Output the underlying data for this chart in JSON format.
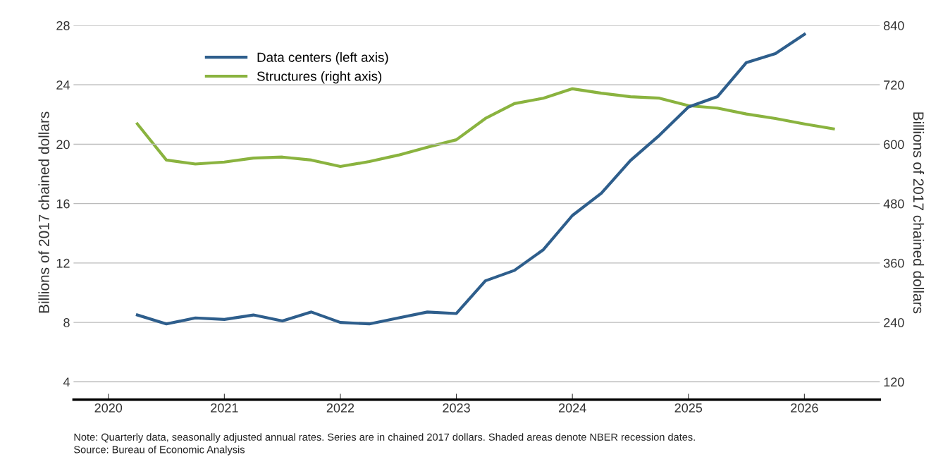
{
  "chart_data": {
    "type": "line",
    "ylabel": "Billions of 2017 chained dollars",
    "y2label": "Billions of 2017 chained dollars",
    "x": [
      2020.25,
      2020.5,
      2020.75,
      2021,
      2021.25,
      2021.5,
      2021.75,
      2022,
      2022.25,
      2022.5,
      2022.75,
      2023,
      2023.25,
      2023.5,
      2023.75,
      2024,
      2024.25,
      2024.5,
      2024.75,
      2025,
      2025.25,
      2025.5,
      2025.75,
      2026,
      2026.25
    ],
    "series": [
      {
        "name": "Data centers (left axis)",
        "color": "#2e5e8c",
        "axis": "y",
        "values": [
          8.5,
          7.9,
          8.3,
          8.2,
          8.5,
          8.1,
          8.7,
          8.0,
          7.9,
          8.3,
          8.7,
          8.6,
          10.8,
          11.5,
          12.9,
          15.2,
          16.7,
          18.9,
          20.6,
          22.5,
          23.2,
          25.5,
          26.1,
          27.4,
          null
        ]
      },
      {
        "name": "Structures (right axis)",
        "color": "#8ab33f",
        "axis": "y2",
        "values": [
          641,
          568,
          560,
          564,
          572,
          574,
          568,
          555,
          565,
          578,
          594,
          609,
          652,
          682,
          693,
          712,
          703,
          696,
          693,
          678,
          673,
          661,
          652,
          641,
          631
        ]
      }
    ],
    "xlim": [
      2019.7,
      2026.65
    ],
    "xticks": [
      2020,
      2021,
      2022,
      2023,
      2024,
      2025,
      2026
    ],
    "ylim": [
      2.8,
      28
    ],
    "yticks": [
      4,
      8,
      12,
      16,
      20,
      24,
      28
    ],
    "y2lim": [
      84,
      840
    ],
    "y2ticks": [
      120,
      240,
      360,
      480,
      600,
      720,
      840
    ],
    "grid": "y",
    "legend": "top left",
    "line_style": "solid",
    "marker": "none",
    "annotations": [
      "Note: Quarterly data, seasonally adjusted annual rates. Series are in chained 2017 dollars. Shaded areas denote NBER recession dates.",
      "Source: Bureau of Economic Analysis"
    ]
  }
}
